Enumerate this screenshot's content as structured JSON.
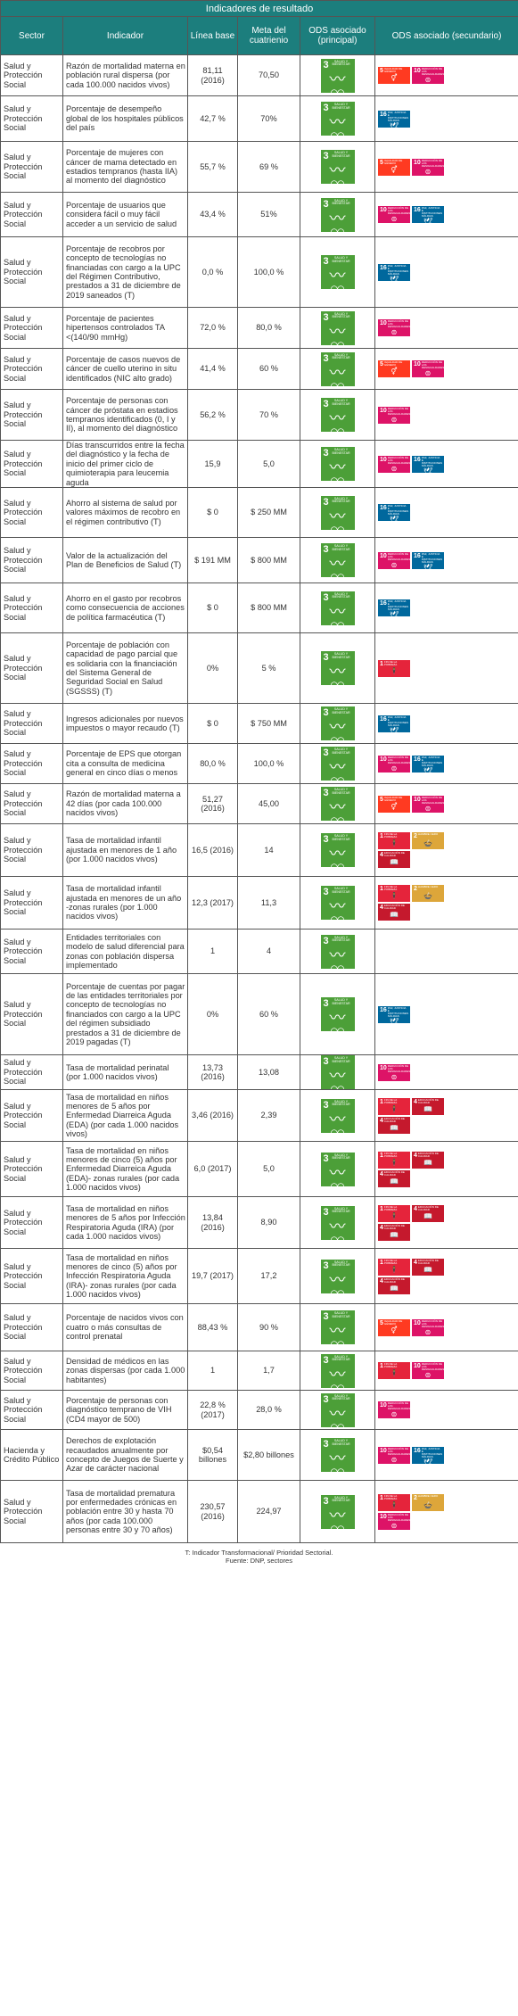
{
  "header": {
    "title": "Indicadores de resultado",
    "columns": [
      "Sector",
      "Indicador",
      "Línea base",
      "Meta del cuatrienio",
      "ODS asociado (principal)",
      "ODS asociado (secundario)"
    ]
  },
  "goals": {
    "g1": {
      "number": "1",
      "title": "FIN DE LA POBREZA",
      "icon": "🕴",
      "color": "#e5243b"
    },
    "g2": {
      "number": "2",
      "title": "HAMBRE CERO",
      "icon": "🍲",
      "color": "#dda63a"
    },
    "g3": {
      "number": "3",
      "title": "SALUD Y BIENESTAR",
      "icon": "〰♡",
      "color": "#4c9f38"
    },
    "g4": {
      "number": "4",
      "title": "EDUCACIÓN DE CALIDAD",
      "icon": "📖",
      "color": "#c5192d"
    },
    "g5": {
      "number": "5",
      "title": "IGUALDAD DE GÉNERO",
      "icon": "⚥",
      "color": "#ff3a21"
    },
    "g10": {
      "number": "10",
      "title": "REDUCCIÓN DE LAS DESIGUALDADES",
      "icon": "⊜",
      "color": "#dd1367"
    },
    "g16": {
      "number": "16",
      "title": "PAZ, JUSTICIA E INSTITUCIONES SÓLIDAS",
      "icon": "🕊",
      "color": "#00689d"
    }
  },
  "rows": [
    {
      "sector": "Salud y Protección Social",
      "indicator": "Razón de mortalidad materna en población rural dispersa (por cada 100.000 nacidos vivos)",
      "base": "81,11 (2016)",
      "goal": "70,50",
      "secondary": [
        "g5",
        "g10"
      ],
      "h": 46
    },
    {
      "sector": "Salud y Protección Social",
      "indicator": "Porcentaje de desempeño global de los hospitales públicos del país",
      "base": "42,7 %",
      "goal": "70%",
      "secondary": [
        "g16"
      ],
      "h": 51
    },
    {
      "sector": "Salud y Protección Social",
      "indicator": "Porcentaje de mujeres con cáncer de mama detectado en estadios tempranos (hasta IIA) al momento del diagnóstico",
      "base": "55,7 %",
      "goal": "69 %",
      "secondary": [
        "g5",
        "g10"
      ],
      "h": 57
    },
    {
      "sector": "Salud y Protección Social",
      "indicator": "Porcentaje de usuarios que considera fácil o muy fácil acceder a un servicio de salud",
      "base": "43,4 %",
      "goal": "51%",
      "secondary": [
        "g10",
        "g16"
      ],
      "h": 50
    },
    {
      "sector": "Salud y Protección Social",
      "indicator": "Porcentaje de recobros por concepto de tecnologías no financiadas con cargo a la UPC del Régimen Contributivo, prestados a 31 de diciembre de 2019 saneados (T)",
      "base": "0,0 %",
      "goal": "100,0 %",
      "secondary": [
        "g16"
      ],
      "h": 79
    },
    {
      "sector": "Salud y Protección Social",
      "indicator": "Porcentaje de pacientes hipertensos controlados TA <(140/90 mmHg)",
      "base": "72,0 %",
      "goal": "80,0 %",
      "secondary": [
        "g10"
      ],
      "h": 46
    },
    {
      "sector": "Salud y Protección Social",
      "indicator": "Porcentaje de casos nuevos de cáncer de cuello uterino in situ identificados (NIC alto grado)",
      "base": "41,4 %",
      "goal": "60 %",
      "secondary": [
        "g5",
        "g10"
      ],
      "h": 46
    },
    {
      "sector": "Salud y Protección Social",
      "indicator": "Porcentaje de personas con cáncer de próstata en estadios tempranos identificados (0, I y II), al momento del diagnóstico",
      "base": "56,2 %",
      "goal": "70 %",
      "secondary": [
        "g10"
      ],
      "h": 57
    },
    {
      "sector": "Salud y Protección Social",
      "indicator": "Días transcurridos entre la fecha del diagnóstico y la fecha de inicio del primer ciclo de quimioterapia para leucemia aguda",
      "base": "15,9",
      "goal": "5,0",
      "secondary": [
        "g10",
        "g16"
      ],
      "h": 51
    },
    {
      "sector": "Salud y Protección Social",
      "indicator": "Ahorro al sistema de salud por valores máximos de recobro en el régimen contributivo (T)",
      "base": "$ 0",
      "goal": "$ 250 MM",
      "secondary": [
        "g16"
      ],
      "h": 56
    },
    {
      "sector": "Salud y Protección Social",
      "indicator": "Valor de la actualización del Plan de Beneficios de Salud (T)",
      "base": "$ 191 MM",
      "goal": "$ 800 MM",
      "secondary": [
        "g10",
        "g16"
      ],
      "h": 51
    },
    {
      "sector": "Salud y Protección Social",
      "indicator": "Ahorro en el gasto por recobros como consecuencia de acciones de política farmacéutica (T)",
      "base": "$ 0",
      "goal": "$ 800 MM",
      "secondary": [
        "g16"
      ],
      "h": 56
    },
    {
      "sector": "Salud y Protección Social",
      "indicator": "Porcentaje de población con capacidad de pago parcial que es solidaria con la financiación del Sistema General de Seguridad Social en Salud (SGSSS) (T)",
      "base": "0%",
      "goal": "5 %",
      "secondary": [
        "g1"
      ],
      "h": 79
    },
    {
      "sector": "Salud y Protección Social",
      "indicator": "Ingresos adicionales por nuevos impuestos o mayor recaudo (T)",
      "base": "$ 0",
      "goal": "$ 750 MM",
      "secondary": [
        "g16"
      ],
      "h": 45
    },
    {
      "sector": "Salud y Protección Social",
      "indicator": "Porcentaje de EPS que otorgan cita a consulta de medicina general en cinco días o menos",
      "base": "80,0 %",
      "goal": "100,0 %",
      "secondary": [
        "g10",
        "g16"
      ],
      "h": 45
    },
    {
      "sector": "Salud y Protección Social",
      "indicator": "Razón de mortalidad materna a 42 días (por cada 100.000 nacidos vivos)",
      "base": "51,27 (2016)",
      "goal": "45,00",
      "secondary": [
        "g5",
        "g10"
      ],
      "h": 45
    },
    {
      "sector": "Salud y Protección Social",
      "indicator": "Tasa de mortalidad infantil ajustada en menores de 1 año (por 1.000 nacidos vivos)",
      "base": "16,5 (2016)",
      "goal": "14",
      "secondary": [
        "g1",
        "g2",
        "g4"
      ],
      "h": 59
    },
    {
      "sector": "Salud y Protección Social",
      "indicator": "Tasa de mortalidad infantil ajustada en menores de un año -zonas rurales (por 1.000 nacidos vivos)",
      "base": "12,3 (2017)",
      "goal": "11,3",
      "secondary": [
        "g1",
        "g2",
        "g4"
      ],
      "h": 59
    },
    {
      "sector": "Salud y Protección Social",
      "indicator": "Entidades territoriales con modelo de salud diferencial para zonas con población dispersa implementado",
      "base": "1",
      "goal": "4",
      "secondary": [],
      "h": 50
    },
    {
      "sector": "Salud y Protección Social",
      "indicator": "Porcentaje de cuentas por pagar de las entidades territoriales por concepto de tecnologías no financiados con cargo a la UPC del régimen subsidiado prestados a 31 de diciembre de 2019 pagadas (T)",
      "base": "0%",
      "goal": "60 %",
      "secondary": [
        "g16"
      ],
      "h": 91
    },
    {
      "sector": "Salud y Protección Social",
      "indicator": "Tasa de mortalidad perinatal (por 1.000 nacidos vivos)",
      "base": "13,73 (2016)",
      "goal": "13,08",
      "secondary": [
        "g10"
      ],
      "h": 34
    },
    {
      "sector": "Salud y Protección Social",
      "indicator": "Tasa de mortalidad en niños menores de 5 años por Enfermedad Diarreica Aguda (EDA) (por cada 1.000 nacidos vivos)",
      "base": "3,46 (2016)",
      "goal": "2,39",
      "secondary": [
        "g1",
        "g4",
        "g4"
      ],
      "h": 58
    },
    {
      "sector": "Salud y Protección Social",
      "indicator": "Tasa de mortalidad en niños menores de cinco (5) años por Enfermedad Diarreica Aguda (EDA)- zonas rurales (por cada 1.000 nacidos vivos)",
      "base": "6,0 (2017)",
      "goal": "5,0",
      "secondary": [
        "g1",
        "g4",
        "g4"
      ],
      "h": 62
    },
    {
      "sector": "Salud y Protección Social",
      "indicator": "Tasa de mortalidad en niños menores de 5 años por Infección Respiratoria Aguda (IRA) (por cada 1.000 nacidos vivos)",
      "base": "13,84 (2016)",
      "goal": "8,90",
      "secondary": [
        "g1",
        "g4",
        "g4"
      ],
      "h": 58
    },
    {
      "sector": "Salud y Protección Social",
      "indicator": "Tasa de mortalidad en niños menores de cinco (5) años por Infección Respiratoria Aguda (IRA)- zonas rurales (por cada 1.000 nacidos vivos)",
      "base": "19,7 (2017)",
      "goal": "17,2",
      "secondary": [
        "g1",
        "g4",
        "g4"
      ],
      "h": 62
    },
    {
      "sector": "Salud y Protección Social",
      "indicator": "Porcentaje de nacidos vivos con cuatro o más consultas de control prenatal",
      "base": "88,43 %",
      "goal": "90 %",
      "secondary": [
        "g5",
        "g10"
      ],
      "h": 53
    },
    {
      "sector": "Salud y Protección Social",
      "indicator": "Densidad de médicos en las zonas dispersas (por cada 1.000 habitantes)",
      "base": "1",
      "goal": "1,7",
      "secondary": [
        "g1",
        "g10"
      ],
      "h": 44
    },
    {
      "sector": "Salud y Protección Social",
      "indicator": "Porcentaje de personas con diagnóstico temprano de VIH (CD4 mayor de 500)",
      "base": "22,8 % (2017)",
      "goal": "28,0 %",
      "secondary": [
        "g10"
      ],
      "h": 44
    },
    {
      "sector": "Hacienda y Crédito Público",
      "indicator": "Derechos de explotación recaudados anualmente por concepto de Juegos de Suerte y Azar de carácter nacional",
      "base": "$0,54 billones",
      "goal": "$2,80 billones",
      "secondary": [
        "g10",
        "g16"
      ],
      "h": 57
    },
    {
      "sector": "Salud y Protección Social",
      "indicator": "Tasa de mortalidad prematura por enfermedades crónicas en población entre 30 y hasta 70 años (por cada 100.000 personas entre 30 y 70 años)",
      "base": "230,57 (2016)",
      "goal": "224,97",
      "secondary": [
        "g1",
        "g2",
        "g10"
      ],
      "h": 70
    }
  ],
  "footer": {
    "note": "T: Indicador Transformacional/ Prioridad Sectorial.",
    "source": "Fuente: DNP, sectores"
  }
}
